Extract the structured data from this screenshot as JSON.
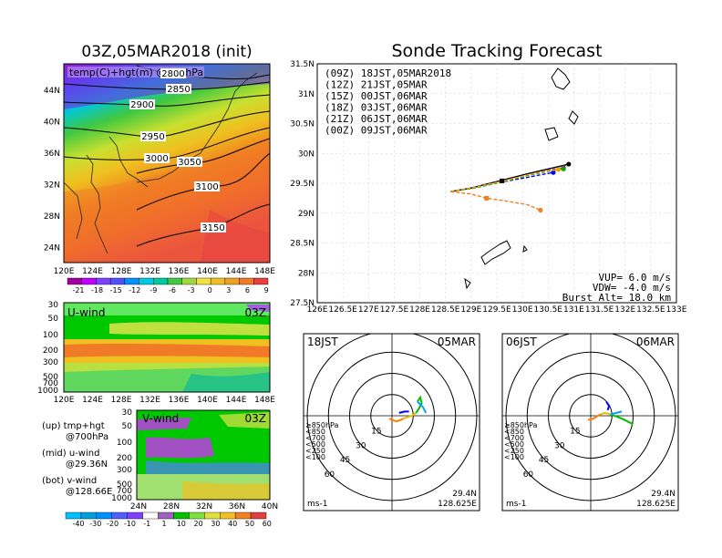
{
  "map_panel": {
    "title": "03Z,05MAR2018 (init)",
    "subtitle": "temp(C)+hgt(m) @700hPa",
    "contour_labels": [
      "2800",
      "2850",
      "2900",
      "2950",
      "3000",
      "3050",
      "3100",
      "3150"
    ],
    "lat_labels": [
      "44N",
      "40N",
      "36N",
      "32N",
      "28N",
      "24N"
    ],
    "lon_labels": [
      "120E",
      "124E",
      "128E",
      "132E",
      "136E",
      "140E",
      "144E",
      "148E"
    ],
    "colorbar_labels": [
      "-21",
      "-18",
      "-15",
      "-12",
      "-9",
      "-6",
      "-3",
      "0",
      "3",
      "6",
      "9"
    ]
  },
  "uwind_panel": {
    "title": "U-wind",
    "time": "03Z",
    "p_labels": [
      "30",
      "50",
      "100",
      "200",
      "300",
      "500",
      "700",
      "1000"
    ],
    "lon_labels": [
      "120E",
      "124E",
      "128E",
      "132E",
      "136E",
      "140E",
      "144E",
      "148E"
    ]
  },
  "vwind_panel": {
    "title": "V-wind",
    "time": "03Z",
    "p_labels": [
      "30",
      "50",
      "100",
      "200",
      "300",
      "500",
      "700",
      "1000"
    ],
    "lat_labels": [
      "24N",
      "28N",
      "32N",
      "36N",
      "40N"
    ],
    "colorbar_labels": [
      "-40",
      "-30",
      "-20",
      "-10",
      "-1",
      "1",
      "10",
      "20",
      "30",
      "40",
      "50",
      "60"
    ]
  },
  "legend_text": {
    "up1": "(up) tmp+hgt",
    "up2": "@700hPa",
    "mid1": "(mid) u-wind",
    "mid2": "@29.36N",
    "bot1": "(bot) v-wind",
    "bot2": "@128.66E"
  },
  "tracking_panel": {
    "title": "Sonde Tracking Forecast",
    "lat_labels": [
      "31.5N",
      "31N",
      "30.5N",
      "30N",
      "29.5N",
      "29N",
      "28.5N",
      "28N",
      "27.5N"
    ],
    "lon_labels": [
      "126E",
      "126.5E",
      "127E",
      "127.5E",
      "128E",
      "128.5E",
      "129E",
      "129.5E",
      "130E",
      "130.5E",
      "131E",
      "131.5E",
      "132E",
      "132.5E",
      "133E"
    ],
    "params": {
      "vup": "VUP= 6.0 m/s",
      "vdw": "VDW= -4.0 m/s",
      "burst": "Burst Alt= 18.0 km"
    }
  },
  "chart_data": [
    {
      "type": "line",
      "title": "Sonde Tracking Forecast",
      "xlim": [
        126,
        133
      ],
      "ylim": [
        27.5,
        31.5
      ],
      "series": [
        {
          "name": "(09Z) 18JST,05MAR2018",
          "color": "#000000",
          "x": [
            128.6,
            129.0,
            129.6,
            130.1,
            130.5,
            130.9
          ],
          "y": [
            29.36,
            29.42,
            29.55,
            29.66,
            29.74,
            29.82
          ]
        },
        {
          "name": "(12Z) 21JST,05MAR",
          "color": "#a020a0",
          "x": [
            128.6,
            129.0,
            129.6,
            130.1,
            130.5,
            130.8
          ],
          "y": [
            29.36,
            29.42,
            29.54,
            29.64,
            29.72,
            29.76
          ]
        },
        {
          "name": "(15Z) 00JST,06MAR",
          "color": "#0000ff",
          "x": [
            128.6,
            129.0,
            129.6,
            130.1,
            130.4,
            130.6
          ],
          "y": [
            29.36,
            29.42,
            29.52,
            29.6,
            29.65,
            29.68
          ]
        },
        {
          "name": "(18Z) 03JST,06MAR",
          "color": "#00b000",
          "x": [
            128.6,
            129.0,
            129.6,
            130.1,
            130.5,
            130.8
          ],
          "y": [
            29.36,
            29.41,
            29.52,
            29.63,
            29.7,
            29.74
          ]
        },
        {
          "name": "(21Z) 06JST,06MAR",
          "color": "#f0a000",
          "x": [
            128.6,
            129.0,
            129.6,
            130.1,
            130.5,
            130.7
          ],
          "y": [
            29.36,
            29.42,
            29.53,
            29.64,
            29.71,
            29.73
          ]
        },
        {
          "name": "(00Z) 09JST,06MAR",
          "color": "#f07f20",
          "x": [
            128.6,
            129.0,
            129.3,
            129.7,
            130.1,
            130.35
          ],
          "y": [
            29.36,
            29.32,
            29.25,
            29.2,
            29.14,
            29.05
          ]
        }
      ]
    },
    {
      "type": "line",
      "title": "hodograph",
      "panel_label": "18JST",
      "date_label": "05MAR",
      "ring_labels": [
        "15",
        "30",
        "45",
        "60"
      ],
      "pressure_legend": [
        "≥850hPa",
        "<850",
        "<700",
        "<500",
        "<250",
        "<100"
      ],
      "pressure_colors": [
        "#ff0000",
        "#ff8000",
        "#e0c000",
        "#00c000",
        "#00a0ff",
        "#0000ff"
      ],
      "unit": "ms-1",
      "lat": "29.4N",
      "lon": "128.625E",
      "series": [
        {
          "name": "<850",
          "color": "#ff8000",
          "x": [
            -2,
            3,
            6,
            8
          ],
          "y": [
            -2,
            -4,
            -3,
            -2
          ]
        },
        {
          "name": "<700",
          "color": "#e0c000",
          "x": [
            8,
            14,
            17
          ],
          "y": [
            -2,
            0,
            2
          ]
        },
        {
          "name": "<500",
          "color": "#00c000",
          "x": [
            17,
            19,
            21,
            20,
            18
          ],
          "y": [
            2,
            5,
            9,
            13,
            10
          ]
        },
        {
          "name": "<250",
          "color": "#00a0ff",
          "x": [
            18,
            22,
            24
          ],
          "y": [
            10,
            6,
            2
          ]
        },
        {
          "name": "<100",
          "color": "#0000ff",
          "x": [
            5,
            9,
            12
          ],
          "y": [
            2,
            3,
            3
          ]
        }
      ]
    },
    {
      "type": "line",
      "title": "hodograph",
      "panel_label": "06JST",
      "date_label": "06MAR",
      "ring_labels": [
        "15",
        "30",
        "45",
        "60"
      ],
      "pressure_legend": [
        "≥850hPa",
        "<850",
        "<700",
        "<500",
        "<250",
        "<100"
      ],
      "pressure_colors": [
        "#ff0000",
        "#ff8000",
        "#e0c000",
        "#00c000",
        "#00a0ff",
        "#0000ff"
      ],
      "unit": "ms-1",
      "lat": "29.4N",
      "lon": "128.625E",
      "series": [
        {
          "name": "<850",
          "color": "#ff8000",
          "x": [
            -2,
            2,
            5,
            7
          ],
          "y": [
            -3,
            -2,
            0,
            1
          ]
        },
        {
          "name": "<700",
          "color": "#e0c000",
          "x": [
            7,
            10,
            14
          ],
          "y": [
            1,
            2,
            1
          ]
        },
        {
          "name": "<500",
          "color": "#00c000",
          "x": [
            14,
            22,
            30
          ],
          "y": [
            1,
            -2,
            -6
          ]
        },
        {
          "name": "<250",
          "color": "#00a0ff",
          "x": [
            14,
            18,
            22
          ],
          "y": [
            1,
            2,
            3
          ]
        },
        {
          "name": "<100",
          "color": "#0000ff",
          "x": [
            12,
            13,
            11
          ],
          "y": [
            4,
            7,
            10
          ]
        }
      ]
    }
  ]
}
